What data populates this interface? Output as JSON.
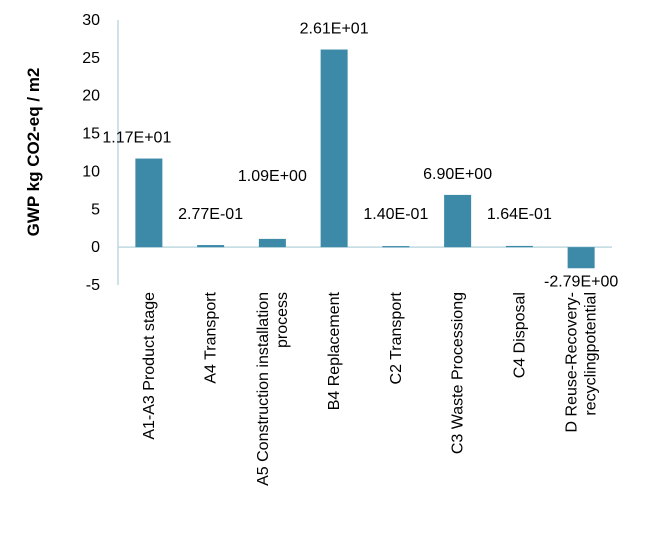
{
  "chart_data": {
    "type": "bar",
    "title": "",
    "xlabel": "",
    "ylabel": "GWP kg CO2-eq / m2",
    "ylim": [
      -5,
      30
    ],
    "yticks": [
      -5,
      0,
      5,
      10,
      15,
      20,
      25,
      30
    ],
    "grid": false,
    "legend": "none",
    "categories": [
      [
        "A1-A3 Product stage"
      ],
      [
        "A4 Transport"
      ],
      [
        "A5 Construction installation",
        "process"
      ],
      [
        "B4 Replacement"
      ],
      [
        "C2 Transport"
      ],
      [
        "C3 Waste Processiong"
      ],
      [
        "C4 Disposal"
      ],
      [
        "D Reuse-Recovery-",
        "recyclingpotential"
      ]
    ],
    "values": [
      11.7,
      0.277,
      1.09,
      26.1,
      0.14,
      6.9,
      0.164,
      -2.79
    ],
    "data_labels": [
      "1.17E+01",
      "2.77E-01",
      "1.09E+00",
      "2.61E+01",
      "1.40E-01",
      "6.90E+00",
      "1.64E-01",
      "-2.79E+00"
    ],
    "colors": {
      "bar": "#3C8AA8",
      "axis": "#BFD9E0",
      "text": "#000000"
    }
  }
}
